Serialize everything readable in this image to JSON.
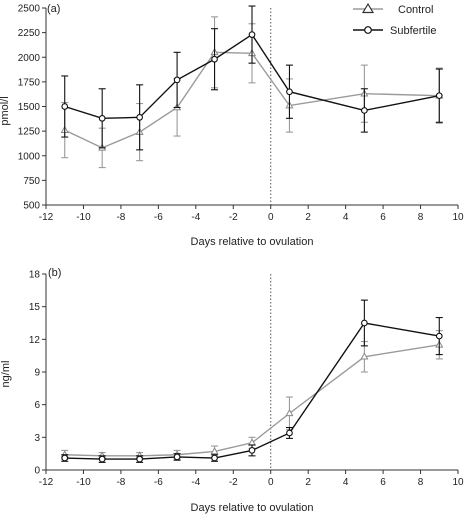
{
  "chart_data": [
    {
      "type": "line",
      "panel_label": "(a)",
      "xlabel": "Days relative to ovulation",
      "ylabel": "pmol/l",
      "xlim": [
        -12,
        10
      ],
      "ylim": [
        500,
        2500
      ],
      "xticks": [
        -12,
        -10,
        -8,
        -6,
        -4,
        -2,
        0,
        2,
        4,
        6,
        8,
        10
      ],
      "yticks": [
        500,
        750,
        1000,
        1250,
        1500,
        1750,
        2000,
        2250,
        2500
      ],
      "vline": 0,
      "legend_position": "top-right",
      "series": [
        {
          "name": "Control",
          "marker": "triangle",
          "color": "#9a9a9a",
          "x": [
            -11,
            -9,
            -7,
            -5,
            -3,
            -1,
            1,
            5,
            9
          ],
          "y": [
            1260,
            1080,
            1240,
            1490,
            2050,
            2040,
            1510,
            1630,
            1610
          ],
          "err": [
            280,
            200,
            290,
            290,
            360,
            300,
            270,
            290,
            280
          ]
        },
        {
          "name": "Subfertile",
          "marker": "circle",
          "color": "#111111",
          "x": [
            -11,
            -9,
            -7,
            -5,
            -3,
            -1,
            1,
            5,
            9
          ],
          "y": [
            1500,
            1380,
            1390,
            1770,
            1980,
            2230,
            1650,
            1460,
            1610
          ],
          "err": [
            310,
            300,
            330,
            280,
            310,
            290,
            270,
            220,
            270
          ]
        }
      ]
    },
    {
      "type": "line",
      "panel_label": "(b)",
      "xlabel": "Days relative to ovulation",
      "ylabel": "ng/ml",
      "xlim": [
        -12,
        10
      ],
      "ylim": [
        0,
        18
      ],
      "xticks": [
        -12,
        -10,
        -8,
        -6,
        -4,
        -2,
        0,
        2,
        4,
        6,
        8,
        10
      ],
      "yticks": [
        0,
        3,
        6,
        9,
        12,
        15,
        18
      ],
      "vline": 0,
      "series": [
        {
          "name": "Control",
          "marker": "triangle",
          "color": "#9a9a9a",
          "x": [
            -11,
            -9,
            -7,
            -5,
            -3,
            -1,
            1,
            5,
            9
          ],
          "y": [
            1.4,
            1.3,
            1.3,
            1.4,
            1.7,
            2.5,
            5.2,
            10.4,
            11.5
          ],
          "err": [
            0.4,
            0.3,
            0.3,
            0.4,
            0.5,
            0.5,
            1.5,
            1.4,
            1.3
          ]
        },
        {
          "name": "Subfertile",
          "marker": "circle",
          "color": "#111111",
          "x": [
            -11,
            -9,
            -7,
            -5,
            -3,
            -1,
            1,
            5,
            9
          ],
          "y": [
            1.1,
            1.0,
            1.0,
            1.2,
            1.1,
            1.8,
            3.4,
            13.5,
            12.3
          ],
          "err": [
            0.3,
            0.3,
            0.3,
            0.3,
            0.3,
            0.5,
            0.5,
            2.1,
            1.7
          ]
        }
      ]
    }
  ]
}
